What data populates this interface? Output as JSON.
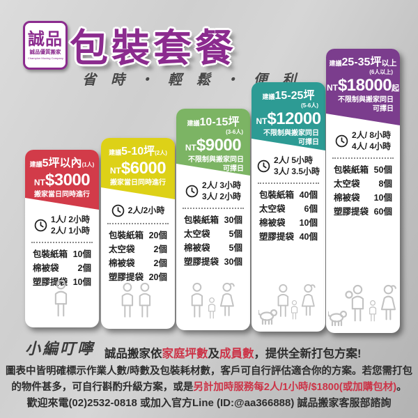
{
  "header": {
    "logo": {
      "brand": "誠品",
      "subtitle": "誠品優質搬家",
      "tagline_en": "Champion Moving Company"
    },
    "title": "包裝套餐",
    "slogan": "省 時 ・ 輕 鬆 ・ 便 利"
  },
  "packages": [
    {
      "accent": "#d23b49",
      "label_prefix": "建議",
      "size": "5坪以內",
      "size_suffix": "",
      "people": "(1人)",
      "people_inline": true,
      "currency": "NT",
      "price": "$3000",
      "price_suffix": "",
      "note_lines": [
        "搬家當日同時進行"
      ],
      "note_align": "center",
      "crew": [
        "1人/ 2小時",
        "2人/ 1小時"
      ],
      "items": [
        [
          "包裝紙箱",
          "10個"
        ],
        [
          "棉被袋",
          "2個"
        ],
        [
          "塑膠提袋",
          "10個"
        ]
      ],
      "figure": "one-adult"
    },
    {
      "accent": "#ddd117",
      "label_prefix": "建議",
      "size": "5-10坪",
      "size_suffix": "",
      "people": "(2人)",
      "people_inline": true,
      "currency": "NT",
      "price": "$6000",
      "price_suffix": "",
      "note_lines": [
        "搬家當日同時進行"
      ],
      "note_align": "center",
      "crew": [
        "2人/2小時"
      ],
      "items": [
        [
          "包裝紙箱",
          "20個"
        ],
        [
          "太空袋",
          "2個"
        ],
        [
          "棉被袋",
          "2個"
        ],
        [
          "塑膠提袋",
          "20個"
        ]
      ],
      "figure": "couple"
    },
    {
      "accent": "#7cb464",
      "label_prefix": "建議",
      "size": "10-15坪",
      "size_suffix": "",
      "people": "(3-6人)",
      "people_inline": false,
      "currency": "NT",
      "price": "$9000",
      "price_suffix": "",
      "note_lines": [
        "不限制與搬家同日",
        "可擇日"
      ],
      "note_align": "right",
      "crew": [
        "2人/ 3小時",
        "3人/ 2小時"
      ],
      "items": [
        [
          "包裝紙箱",
          "30個"
        ],
        [
          "太空袋",
          "5個"
        ],
        [
          "棉被袋",
          "5個"
        ],
        [
          "塑膠提袋",
          "30個"
        ]
      ],
      "figure": "family-3"
    },
    {
      "accent": "#2d9b94",
      "label_prefix": "建議",
      "size": "15-25坪",
      "size_suffix": "",
      "people": "(5-6人)",
      "people_inline": false,
      "currency": "NT",
      "price": "$12000",
      "price_suffix": "",
      "note_lines": [
        "不限制與搬家同日",
        "可擇日"
      ],
      "note_align": "right",
      "crew": [
        "2人/ 5小時",
        "3人/ 3.5小時"
      ],
      "items": [
        [
          "包裝紙箱",
          "40個"
        ],
        [
          "太空袋",
          "6個"
        ],
        [
          "棉被袋",
          "10個"
        ],
        [
          "塑膠提袋",
          "40個"
        ]
      ],
      "figure": "family-3-dog"
    },
    {
      "accent": "#7b3d8d",
      "label_prefix": "建議",
      "size": "25-35坪",
      "size_suffix": "以上",
      "people": "(6人以上)",
      "people_inline": false,
      "currency": "NT",
      "price": "$18000",
      "price_suffix": "起",
      "note_lines": [
        "不限制與搬家同日",
        "可擇日"
      ],
      "note_align": "right",
      "crew": [
        "2人/ 8小時",
        "4人/ 4小時"
      ],
      "items": [
        [
          "包裝紙箱",
          "50個"
        ],
        [
          "太空袋",
          "8個"
        ],
        [
          "棉被袋",
          "10個"
        ],
        [
          "塑膠提袋",
          "60個"
        ]
      ],
      "figure": "family-4-dog"
    }
  ],
  "footer": {
    "hand_note": "小編叮嚀",
    "line1": [
      {
        "t": "誠品搬家依"
      },
      {
        "t": "家庭坪數",
        "red": true
      },
      {
        "t": "及"
      },
      {
        "t": "成員數",
        "red": true
      },
      {
        "t": "，提供全新打包方案!"
      }
    ],
    "line2": [
      {
        "t": "圖表中皆明確標示作業人數/時數及包裝耗材數，客戶可自行評估適合你的方案。若您需打包"
      }
    ],
    "line3": [
      {
        "t": "的物件甚多，可自行斟酌升級方案，或是"
      },
      {
        "t": "另計加時服務每2人/1小時/$1800(或加購包材)",
        "red": true
      },
      {
        "t": "。"
      }
    ],
    "line4": [
      {
        "t": "歡迎來電(02)2532-0818 或加入官方Line (ID:@aa366888) 誠品搬家客服部諮詢"
      }
    ]
  },
  "colors": {
    "brand_purple": "#8b2b8e",
    "text_red": "#cc3347",
    "card_red": "#d23b49",
    "card_yellow": "#ddd117",
    "card_green": "#7cb464",
    "card_teal": "#2d9b94",
    "card_purple": "#7b3d8d"
  }
}
